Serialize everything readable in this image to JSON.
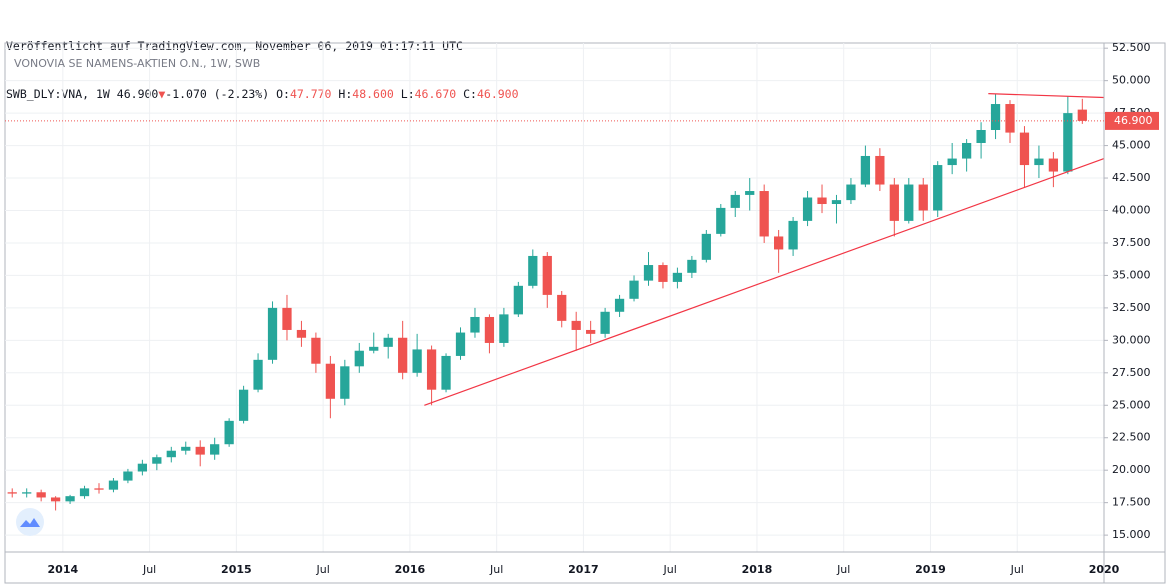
{
  "chart_data": {
    "type": "candlestick",
    "header": {
      "published": "Veröffentlicht auf TradingView.com, November 06, 2019 01:17:11 UTC",
      "symbol": "SWB_DLY:VNA, 1W",
      "last": "46.900",
      "change": "-1.070 (-2.23%)",
      "open_label": "O:",
      "open": "47.770",
      "high_label": "H:",
      "high": "48.600",
      "low_label": "L:",
      "low": "46.670",
      "close_label": "C:",
      "close": "46.900"
    },
    "title": "VONOVIA SE NAMENS-AKTIEN O.N., 1W, SWB",
    "up_color": "#26a69a",
    "down_color": "#ef5350",
    "x": [
      "2013-09",
      "2013-10",
      "2013-11",
      "2013-12",
      "2014-01",
      "2014-02",
      "2014-03",
      "2014-04",
      "2014-05",
      "2014-06",
      "2014-07",
      "2014-08",
      "2014-09",
      "2014-10",
      "2014-11",
      "2014-12",
      "2015-01",
      "2015-02",
      "2015-03",
      "2015-04",
      "2015-05",
      "2015-06",
      "2015-07",
      "2015-08",
      "2015-09",
      "2015-10",
      "2015-11",
      "2015-12",
      "2016-01",
      "2016-02",
      "2016-03",
      "2016-04",
      "2016-05",
      "2016-06",
      "2016-07",
      "2016-08",
      "2016-09",
      "2016-10",
      "2016-11",
      "2016-12",
      "2017-01",
      "2017-02",
      "2017-03",
      "2017-04",
      "2017-05",
      "2017-06",
      "2017-07",
      "2017-08",
      "2017-09",
      "2017-10",
      "2017-11",
      "2017-12",
      "2018-01",
      "2018-02",
      "2018-03",
      "2018-04",
      "2018-05",
      "2018-06",
      "2018-07",
      "2018-08",
      "2018-09",
      "2018-10",
      "2018-11",
      "2018-12",
      "2019-01",
      "2019-02",
      "2019-03",
      "2019-04",
      "2019-05",
      "2019-06",
      "2019-07",
      "2019-08",
      "2019-09",
      "2019-10",
      "2019-11"
    ],
    "ohlc": [
      [
        18.3,
        18.6,
        17.9,
        18.2
      ],
      [
        18.2,
        18.6,
        17.9,
        18.3
      ],
      [
        18.3,
        18.5,
        17.6,
        17.9
      ],
      [
        17.9,
        18.0,
        16.9,
        17.6
      ],
      [
        17.6,
        18.1,
        17.4,
        18.0
      ],
      [
        18.0,
        18.8,
        17.8,
        18.6
      ],
      [
        18.6,
        19.0,
        18.2,
        18.5
      ],
      [
        18.5,
        19.4,
        18.3,
        19.2
      ],
      [
        19.2,
        20.1,
        19.0,
        19.9
      ],
      [
        19.9,
        20.8,
        19.6,
        20.5
      ],
      [
        20.5,
        21.2,
        20.0,
        21.0
      ],
      [
        21.0,
        21.8,
        20.6,
        21.5
      ],
      [
        21.5,
        22.2,
        21.2,
        21.8
      ],
      [
        21.8,
        22.3,
        20.3,
        21.2
      ],
      [
        21.2,
        22.5,
        20.8,
        22.0
      ],
      [
        22.0,
        24.0,
        21.8,
        23.8
      ],
      [
        23.8,
        26.5,
        23.6,
        26.2
      ],
      [
        26.2,
        29.0,
        26.0,
        28.5
      ],
      [
        28.5,
        33.0,
        28.2,
        32.5
      ],
      [
        32.5,
        33.5,
        30.0,
        30.8
      ],
      [
        30.8,
        31.5,
        29.5,
        30.2
      ],
      [
        30.2,
        30.6,
        27.5,
        28.2
      ],
      [
        28.2,
        28.8,
        24.0,
        25.5
      ],
      [
        25.5,
        28.5,
        25.0,
        28.0
      ],
      [
        28.0,
        29.8,
        27.5,
        29.2
      ],
      [
        29.2,
        30.6,
        29.0,
        29.5
      ],
      [
        29.5,
        30.5,
        28.6,
        30.2
      ],
      [
        30.2,
        31.5,
        27.0,
        27.5
      ],
      [
        27.5,
        30.5,
        27.2,
        29.3
      ],
      [
        29.3,
        29.6,
        25.0,
        26.2
      ],
      [
        26.2,
        29.0,
        26.0,
        28.8
      ],
      [
        28.8,
        31.0,
        28.5,
        30.6
      ],
      [
        30.6,
        32.5,
        30.2,
        31.8
      ],
      [
        31.8,
        32.0,
        29.0,
        29.8
      ],
      [
        29.8,
        32.5,
        29.5,
        32.0
      ],
      [
        32.0,
        34.5,
        31.8,
        34.2
      ],
      [
        34.2,
        37.0,
        34.0,
        36.5
      ],
      [
        36.5,
        36.8,
        32.5,
        33.5
      ],
      [
        33.5,
        33.8,
        31.0,
        31.5
      ],
      [
        31.5,
        32.2,
        29.2,
        30.8
      ],
      [
        30.8,
        31.5,
        29.8,
        30.5
      ],
      [
        30.5,
        32.5,
        30.2,
        32.2
      ],
      [
        32.2,
        33.5,
        31.8,
        33.2
      ],
      [
        33.2,
        35.0,
        33.0,
        34.6
      ],
      [
        34.6,
        36.8,
        34.2,
        35.8
      ],
      [
        35.8,
        36.0,
        34.0,
        34.5
      ],
      [
        34.5,
        35.6,
        34.0,
        35.2
      ],
      [
        35.2,
        36.5,
        34.8,
        36.2
      ],
      [
        36.2,
        38.5,
        36.0,
        38.2
      ],
      [
        38.2,
        40.5,
        38.0,
        40.2
      ],
      [
        40.2,
        41.5,
        39.5,
        41.2
      ],
      [
        41.2,
        42.5,
        40.0,
        41.5
      ],
      [
        41.5,
        42.0,
        37.5,
        38.0
      ],
      [
        38.0,
        38.5,
        35.2,
        37.0
      ],
      [
        37.0,
        39.5,
        36.5,
        39.2
      ],
      [
        39.2,
        41.5,
        38.8,
        41.0
      ],
      [
        41.0,
        42.0,
        39.8,
        40.5
      ],
      [
        40.5,
        41.2,
        39.0,
        40.8
      ],
      [
        40.8,
        42.5,
        40.5,
        42.0
      ],
      [
        42.0,
        45.0,
        41.8,
        44.2
      ],
      [
        44.2,
        44.8,
        41.5,
        42.0
      ],
      [
        42.0,
        42.5,
        38.0,
        39.2
      ],
      [
        39.2,
        42.5,
        39.0,
        42.0
      ],
      [
        42.0,
        42.5,
        39.2,
        40.0
      ],
      [
        40.0,
        43.8,
        39.5,
        43.5
      ],
      [
        43.5,
        45.2,
        42.8,
        44.0
      ],
      [
        44.0,
        45.5,
        43.0,
        45.2
      ],
      [
        45.2,
        46.8,
        44.0,
        46.2
      ],
      [
        46.2,
        49.0,
        45.5,
        48.2
      ],
      [
        48.2,
        48.5,
        45.2,
        46.0
      ],
      [
        46.0,
        46.5,
        41.8,
        43.5
      ],
      [
        43.5,
        45.0,
        42.5,
        44.0
      ],
      [
        44.0,
        44.5,
        41.8,
        43.0
      ],
      [
        43.0,
        48.8,
        42.8,
        47.5
      ],
      [
        47.77,
        48.6,
        46.67,
        46.9
      ]
    ],
    "last_price": {
      "value": 46.9,
      "label": "46.900"
    },
    "trendlines": [
      {
        "color": "#f23645",
        "x": [
          "2016-02",
          "2020-01"
        ],
        "y": [
          25.0,
          44.0
        ]
      },
      {
        "color": "#f23645",
        "x": [
          "2019-05",
          "2020-01"
        ],
        "y": [
          49.0,
          48.7
        ]
      }
    ],
    "xlim": [
      "2013-09",
      "2020-01"
    ],
    "xticks": [
      {
        "value": "2014-01",
        "label": "2014"
      },
      {
        "value": "2014-07",
        "label": "Jul"
      },
      {
        "value": "2015-01",
        "label": "2015"
      },
      {
        "value": "2015-07",
        "label": "Jul"
      },
      {
        "value": "2016-01",
        "label": "2016"
      },
      {
        "value": "2016-07",
        "label": "Jul"
      },
      {
        "value": "2017-01",
        "label": "2017"
      },
      {
        "value": "2017-07",
        "label": "Jul"
      },
      {
        "value": "2018-01",
        "label": "2018"
      },
      {
        "value": "2018-07",
        "label": "Jul"
      },
      {
        "value": "2019-01",
        "label": "2019"
      },
      {
        "value": "2019-07",
        "label": "Jul"
      },
      {
        "value": "2020-01",
        "label": "2020"
      }
    ],
    "ylim": [
      13.7,
      52.9
    ],
    "yticks": [
      {
        "value": 15,
        "label": "15.000"
      },
      {
        "value": 17.5,
        "label": "17.500"
      },
      {
        "value": 20,
        "label": "20.000"
      },
      {
        "value": 22.5,
        "label": "22.500"
      },
      {
        "value": 25,
        "label": "25.000"
      },
      {
        "value": 27.5,
        "label": "27.500"
      },
      {
        "value": 30,
        "label": "30.000"
      },
      {
        "value": 32.5,
        "label": "32.500"
      },
      {
        "value": 35,
        "label": "35.000"
      },
      {
        "value": 37.5,
        "label": "37.500"
      },
      {
        "value": 40,
        "label": "40.000"
      },
      {
        "value": 42.5,
        "label": "42.500"
      },
      {
        "value": 45,
        "label": "45.000"
      },
      {
        "value": 47.5,
        "label": "47.500"
      },
      {
        "value": 50,
        "label": "50.000"
      },
      {
        "value": 52.5,
        "label": "52.500"
      }
    ],
    "grid": true
  }
}
